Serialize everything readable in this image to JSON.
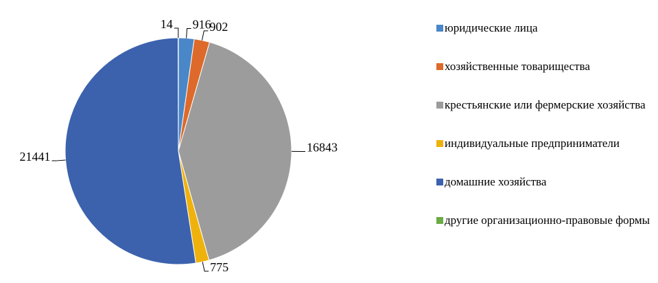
{
  "chart_data": {
    "type": "pie",
    "categories": [
      "юридические лица",
      "хозяйственные товарищества",
      "крестьянские или фермерские хозяйства",
      "индивидуальные предприниматели",
      "домашние хозяйства",
      "другие организационно-правовые формы"
    ],
    "values": [
      916,
      902,
      16843,
      775,
      21441,
      14
    ],
    "colors": [
      "#4a87c8",
      "#dd6a2a",
      "#9c9c9c",
      "#efb20c",
      "#3c62ad",
      "#6aab46"
    ],
    "legend": "right"
  }
}
